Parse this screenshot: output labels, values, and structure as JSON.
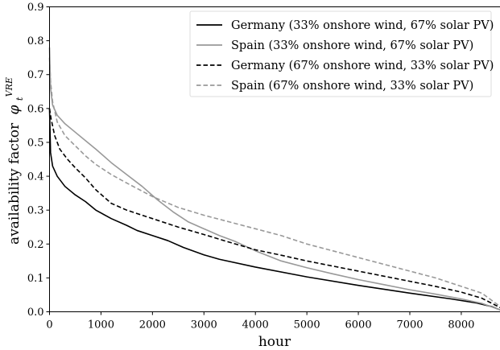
{
  "chart_data": {
    "type": "line",
    "title": "",
    "xlabel": "hour",
    "ylabel": "availability factor",
    "ylabel_symbol": "φ",
    "ylabel_sub": "t",
    "ylabel_sup": "VRE",
    "xlim": [
      0,
      8760
    ],
    "ylim": [
      0,
      0.9
    ],
    "xticks": [
      0,
      1000,
      2000,
      3000,
      4000,
      5000,
      6000,
      7000,
      8000
    ],
    "xtick_labels": [
      "0",
      "1000",
      "2000",
      "3000",
      "4000",
      "5000",
      "6000",
      "7000",
      "8000"
    ],
    "yticks": [
      0.0,
      0.1,
      0.2,
      0.3,
      0.4,
      0.5,
      0.6,
      0.7,
      0.8,
      0.9
    ],
    "ytick_labels": [
      "0.0",
      "0.1",
      "0.2",
      "0.3",
      "0.4",
      "0.5",
      "0.6",
      "0.7",
      "0.8",
      "0.9"
    ],
    "grid": false,
    "legend_position": "top-right",
    "series": [
      {
        "name": "Germany (33% onshore wind, 67% solar PV)",
        "color": "#000000",
        "dash": "solid",
        "x": [
          0,
          20,
          60,
          150,
          300,
          500,
          700,
          900,
          1200,
          1500,
          1700,
          2000,
          2300,
          2600,
          3000,
          3300,
          4000,
          5000,
          6000,
          7000,
          7800,
          8300,
          8600,
          8760
        ],
        "y": [
          0.6,
          0.47,
          0.43,
          0.4,
          0.37,
          0.345,
          0.325,
          0.3,
          0.275,
          0.255,
          0.24,
          0.225,
          0.21,
          0.19,
          0.168,
          0.155,
          0.132,
          0.103,
          0.078,
          0.055,
          0.038,
          0.026,
          0.015,
          0.005
        ]
      },
      {
        "name": "Spain (33% onshore wind, 67% solar PV)",
        "color": "#999999",
        "dash": "solid",
        "x": [
          0,
          20,
          60,
          150,
          300,
          500,
          700,
          900,
          1200,
          1500,
          1800,
          2100,
          2400,
          2700,
          3000,
          3300,
          3600,
          4000,
          4500,
          5000,
          5500,
          6000,
          6500,
          7000,
          7500,
          8000,
          8400,
          8760
        ],
        "y": [
          0.78,
          0.66,
          0.61,
          0.58,
          0.555,
          0.53,
          0.505,
          0.48,
          0.44,
          0.405,
          0.37,
          0.33,
          0.295,
          0.265,
          0.245,
          0.225,
          0.208,
          0.18,
          0.15,
          0.13,
          0.112,
          0.095,
          0.08,
          0.065,
          0.052,
          0.038,
          0.025,
          0.005
        ]
      },
      {
        "name": "Germany (67% onshore wind, 33% solar PV)",
        "color": "#000000",
        "dash": "dashed",
        "x": [
          0,
          30,
          100,
          200,
          350,
          500,
          700,
          900,
          1200,
          1500,
          2000,
          2500,
          3000,
          3500,
          4000,
          4500,
          5000,
          5500,
          6000,
          6500,
          7000,
          7500,
          8000,
          8400,
          8760
        ],
        "y": [
          0.6,
          0.57,
          0.52,
          0.48,
          0.45,
          0.425,
          0.395,
          0.36,
          0.32,
          0.3,
          0.275,
          0.25,
          0.228,
          0.205,
          0.183,
          0.167,
          0.15,
          0.135,
          0.12,
          0.105,
          0.09,
          0.075,
          0.058,
          0.04,
          0.012
        ]
      },
      {
        "name": "Spain (67% onshore wind, 33% solar PV)",
        "color": "#999999",
        "dash": "dashed",
        "x": [
          0,
          20,
          60,
          150,
          300,
          500,
          700,
          900,
          1200,
          1500,
          2000,
          2500,
          3000,
          3500,
          4000,
          4500,
          5000,
          5500,
          6000,
          6500,
          7000,
          7500,
          8000,
          8400,
          8760
        ],
        "y": [
          0.75,
          0.68,
          0.62,
          0.56,
          0.52,
          0.49,
          0.46,
          0.435,
          0.405,
          0.38,
          0.34,
          0.308,
          0.285,
          0.265,
          0.245,
          0.225,
          0.2,
          0.18,
          0.16,
          0.14,
          0.12,
          0.1,
          0.075,
          0.055,
          0.015
        ]
      }
    ]
  }
}
